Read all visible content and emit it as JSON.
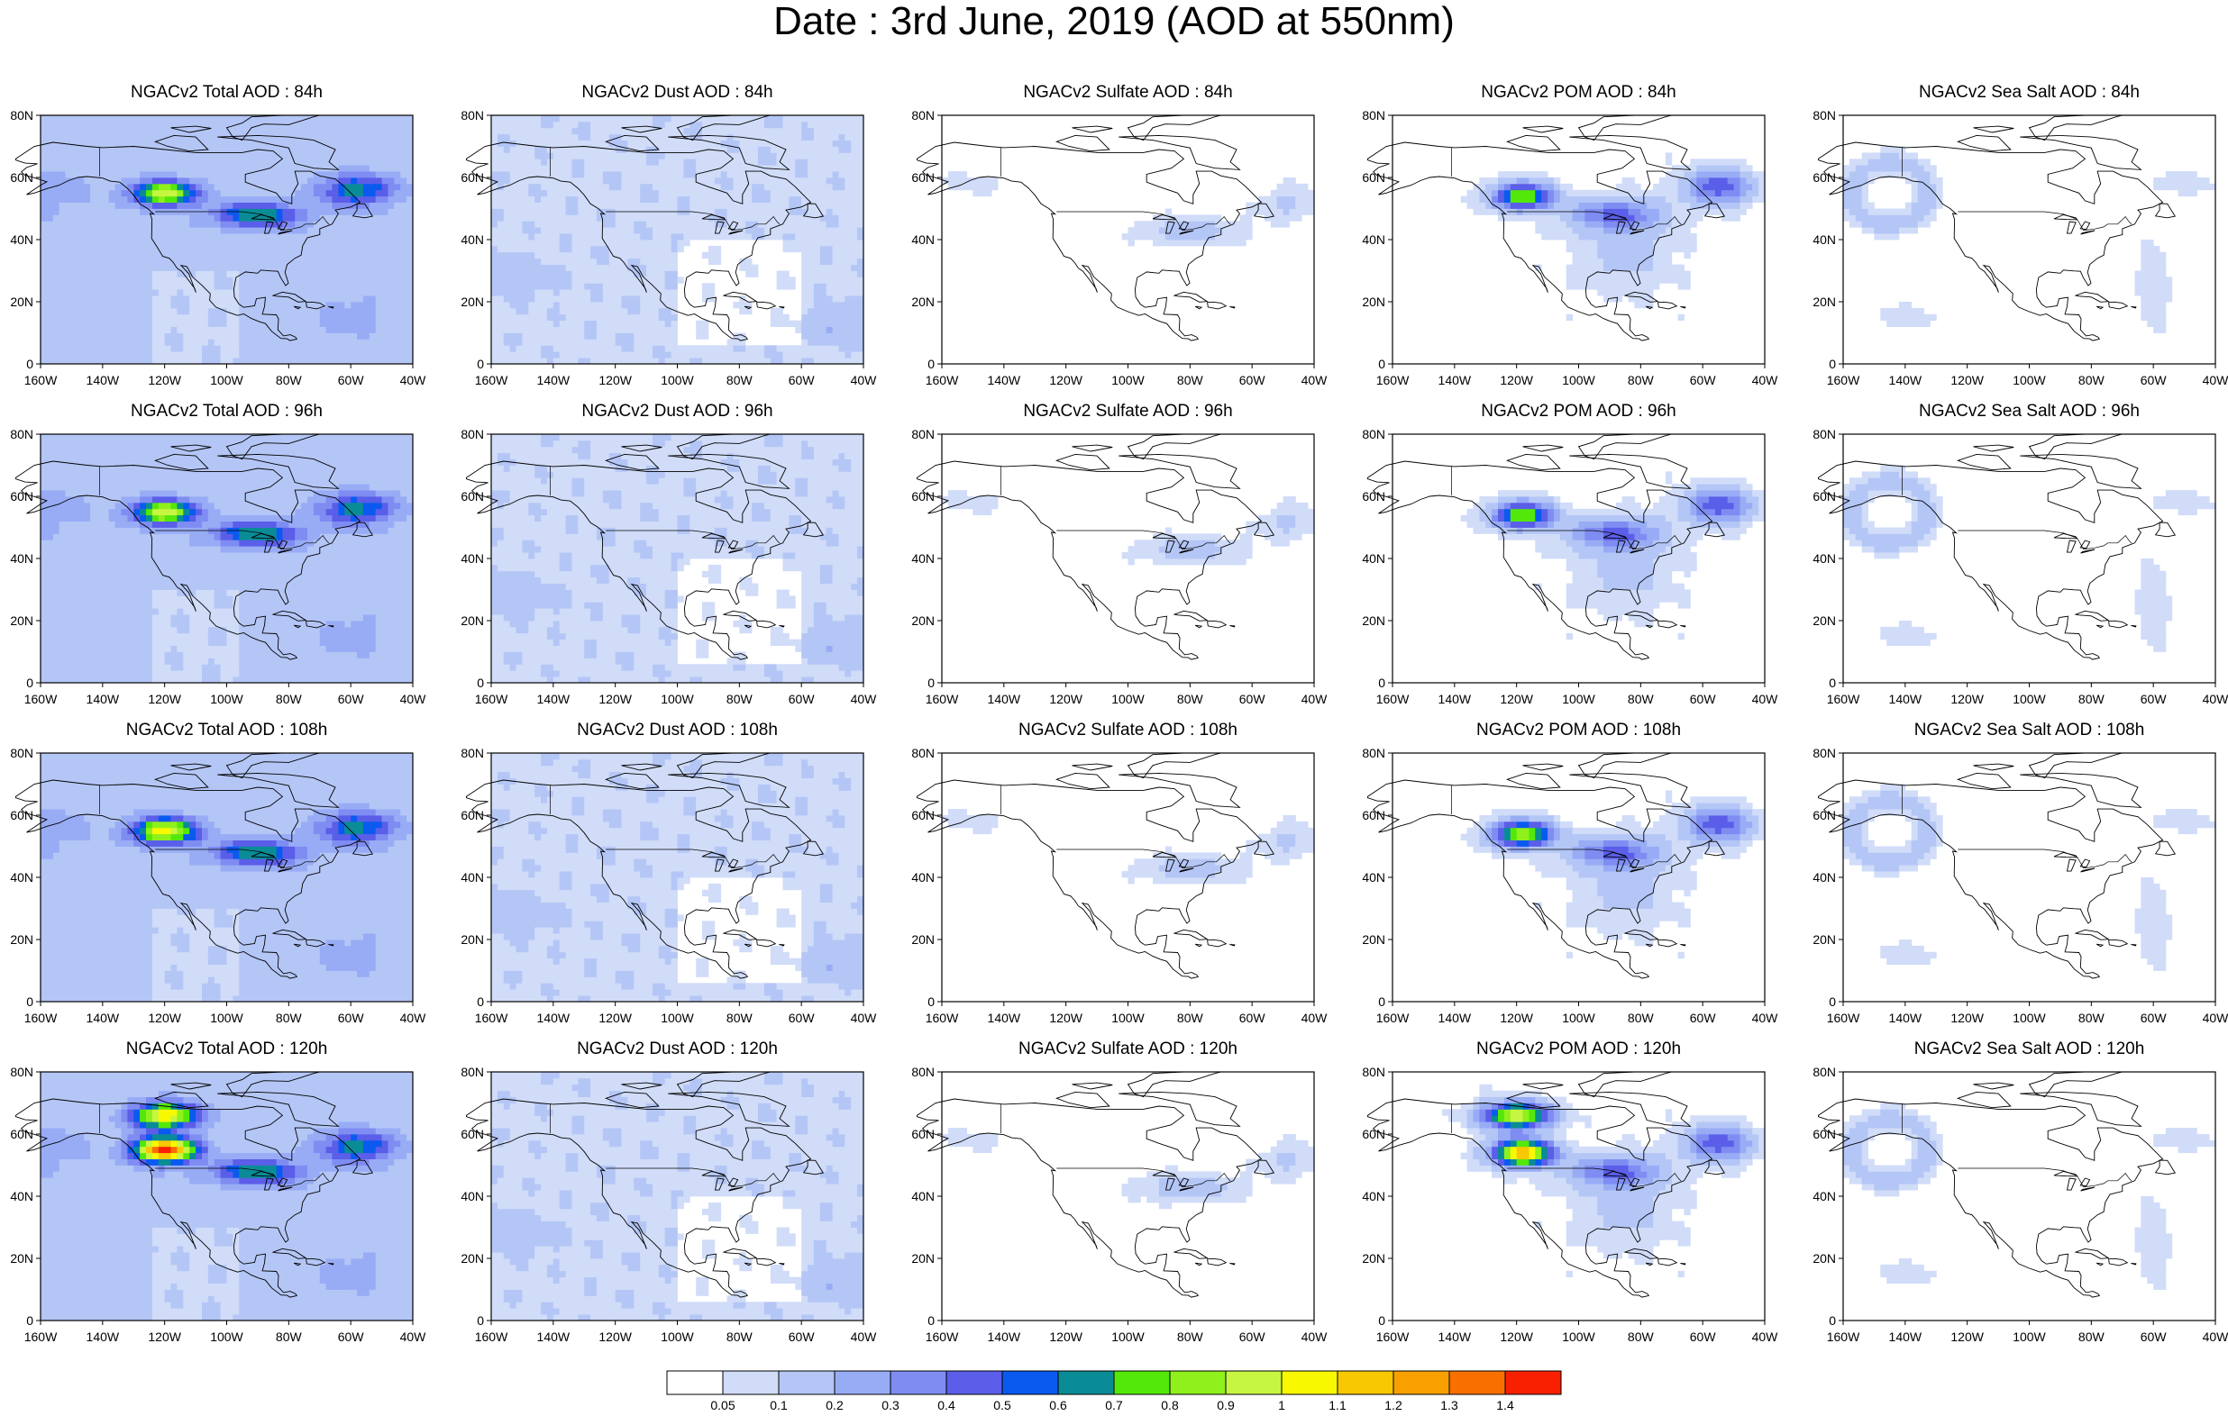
{
  "title": "Date : 3rd June, 2019 (AOD at 550nm)",
  "axes": {
    "lat_labels": [
      "0",
      "20N",
      "40N",
      "60N",
      "80N"
    ],
    "lon_labels": [
      "160W",
      "140W",
      "120W",
      "100W",
      "80W",
      "60W",
      "40W"
    ],
    "lat_range": [
      0,
      80
    ],
    "lon_range": [
      -160,
      -40
    ]
  },
  "panels": [
    [
      {
        "title": "NGACv2 Total AOD : 84h",
        "field": "total",
        "intensity": 1.0,
        "hour": 84
      },
      {
        "title": "NGACv2 Dust AOD : 84h",
        "field": "dust",
        "intensity": 1.0,
        "hour": 84
      },
      {
        "title": "NGACv2 Sulfate AOD : 84h",
        "field": "sulfate",
        "intensity": 1.0,
        "hour": 84
      },
      {
        "title": "NGACv2 POM AOD : 84h",
        "field": "pom",
        "intensity": 1.0,
        "hour": 84
      },
      {
        "title": "NGACv2 Sea Salt AOD : 84h",
        "field": "seasalt",
        "intensity": 1.0,
        "hour": 84
      }
    ],
    [
      {
        "title": "NGACv2 Total AOD : 96h",
        "field": "total",
        "intensity": 1.0,
        "hour": 96
      },
      {
        "title": "NGACv2 Dust AOD : 96h",
        "field": "dust",
        "intensity": 1.0,
        "hour": 96
      },
      {
        "title": "NGACv2 Sulfate AOD : 96h",
        "field": "sulfate",
        "intensity": 1.0,
        "hour": 96
      },
      {
        "title": "NGACv2 POM AOD : 96h",
        "field": "pom",
        "intensity": 1.0,
        "hour": 96
      },
      {
        "title": "NGACv2 Sea Salt AOD : 96h",
        "field": "seasalt",
        "intensity": 1.0,
        "hour": 96
      }
    ],
    [
      {
        "title": "NGACv2 Total AOD : 108h",
        "field": "total",
        "intensity": 1.1,
        "hour": 108
      },
      {
        "title": "NGACv2 Dust AOD : 108h",
        "field": "dust",
        "intensity": 1.0,
        "hour": 108
      },
      {
        "title": "NGACv2 Sulfate AOD : 108h",
        "field": "sulfate",
        "intensity": 1.0,
        "hour": 108
      },
      {
        "title": "NGACv2 POM AOD : 108h",
        "field": "pom",
        "intensity": 1.1,
        "hour": 108
      },
      {
        "title": "NGACv2 Sea Salt AOD : 108h",
        "field": "seasalt",
        "intensity": 1.0,
        "hour": 108
      }
    ],
    [
      {
        "title": "NGACv2 Total AOD : 120h",
        "field": "total",
        "intensity": 1.5,
        "hour": 120
      },
      {
        "title": "NGACv2 Dust AOD : 120h",
        "field": "dust",
        "intensity": 1.0,
        "hour": 120
      },
      {
        "title": "NGACv2 Sulfate AOD : 120h",
        "field": "sulfate",
        "intensity": 1.1,
        "hour": 120
      },
      {
        "title": "NGACv2 POM AOD : 120h",
        "field": "pom",
        "intensity": 1.5,
        "hour": 120
      },
      {
        "title": "NGACv2 Sea Salt  AOD : 120h",
        "field": "seasalt",
        "intensity": 1.0,
        "hour": 120
      }
    ]
  ],
  "colorbar": {
    "labels": [
      "0.05",
      "0.1",
      "0.2",
      "0.3",
      "0.4",
      "0.5",
      "0.6",
      "0.7",
      "0.8",
      "0.9",
      "1",
      "1.1",
      "1.2",
      "1.3",
      "1.4"
    ],
    "colors": [
      "#ffffff",
      "#d0dcf8",
      "#b4c6f6",
      "#98acf6",
      "#7f8cf2",
      "#5a5ee8",
      "#0a5af0",
      "#0a8c96",
      "#54e80a",
      "#90f01c",
      "#c6f642",
      "#f8f800",
      "#f8c800",
      "#f8a000",
      "#f87000",
      "#f82000"
    ]
  }
}
